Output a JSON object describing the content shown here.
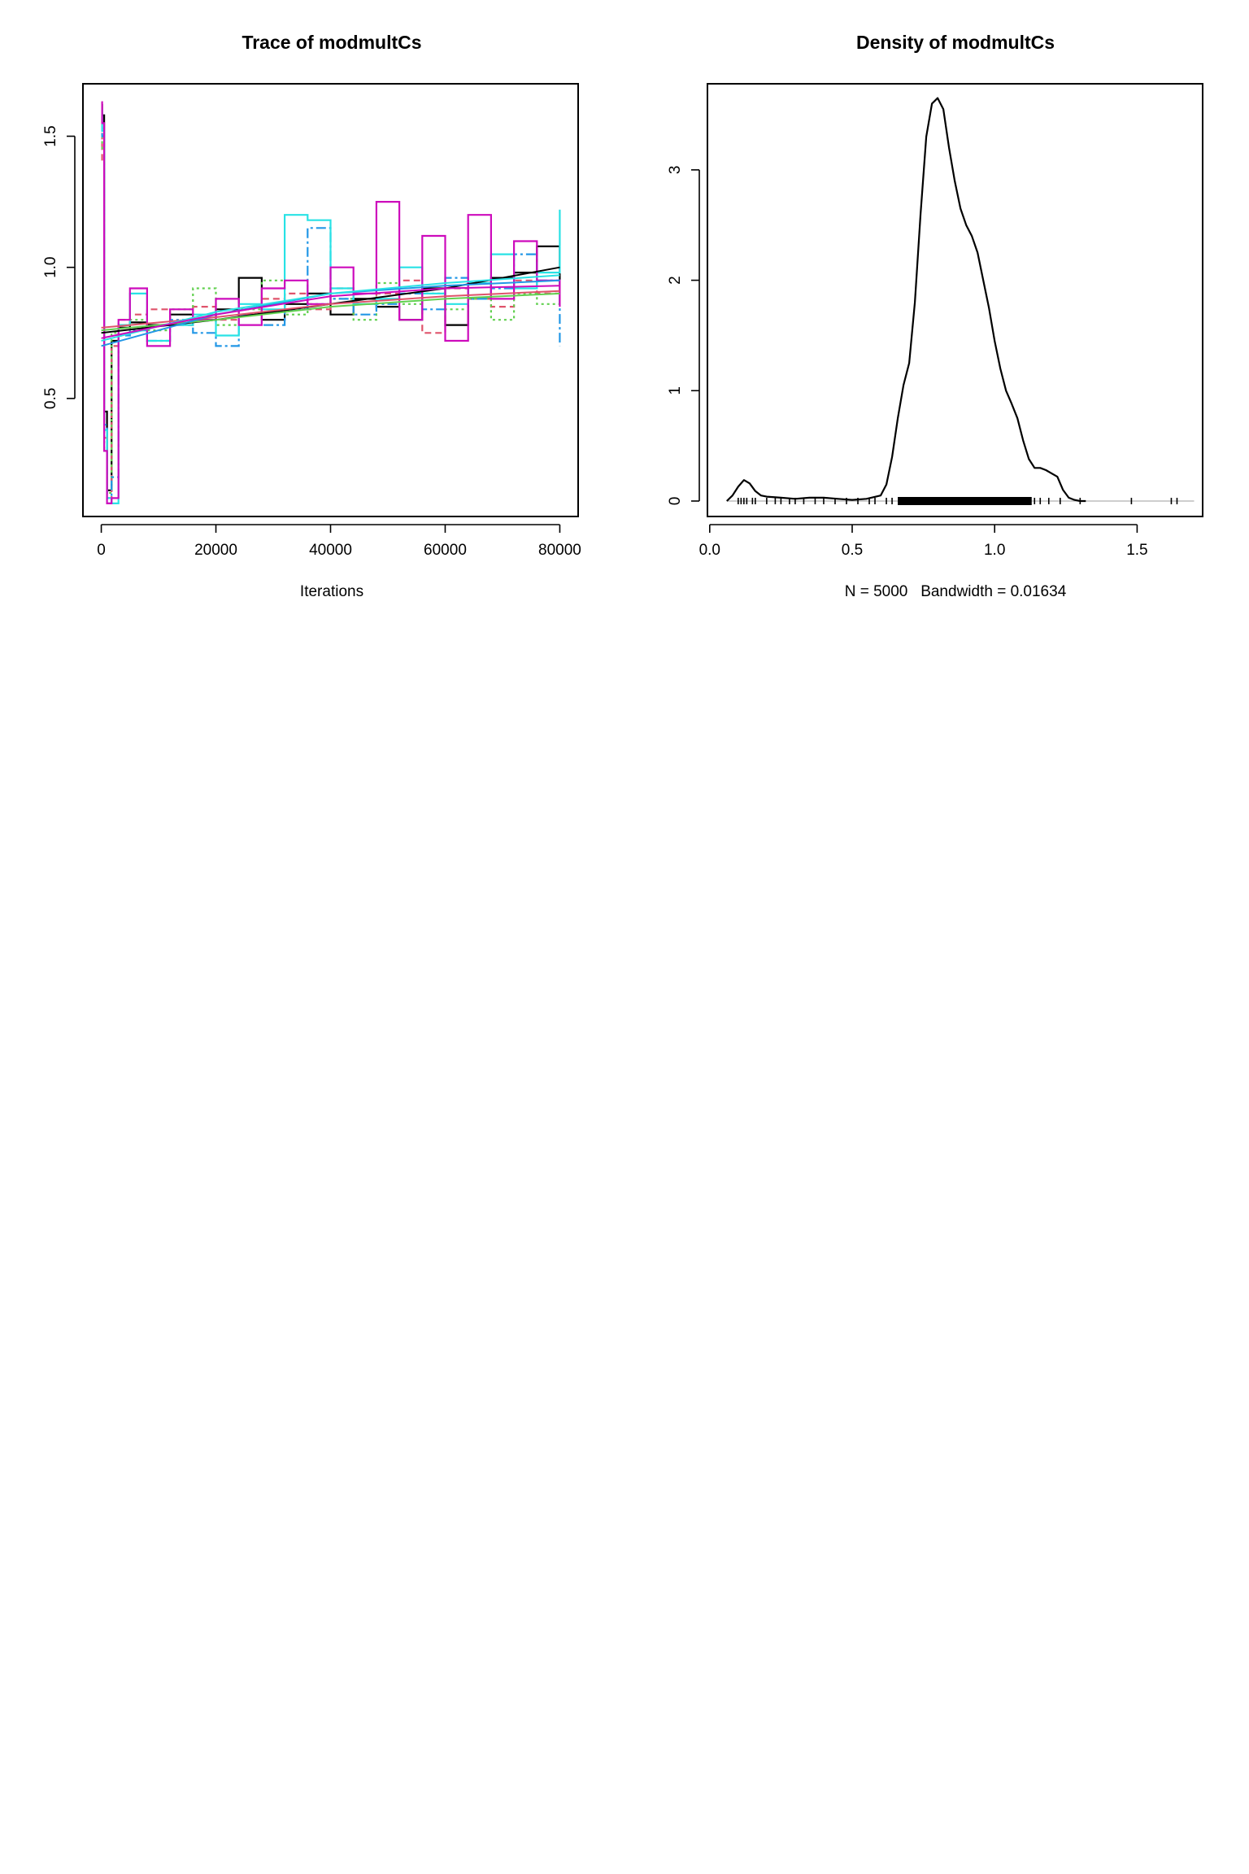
{
  "chart_data": [
    {
      "type": "line",
      "title": "Trace of modmultCs",
      "xlabel": "Iterations",
      "ylabel": "",
      "xlim": [
        -3200,
        83200
      ],
      "ylim": [
        0.05,
        1.7
      ],
      "x_ticks": [
        "0",
        "20000",
        "40000",
        "60000",
        "80000"
      ],
      "y_ticks": [
        "0.5",
        "1.0",
        "1.5"
      ],
      "x_tick_values": [
        0,
        20000,
        40000,
        60000,
        80000
      ],
      "y_tick_values": [
        0.5,
        1.0,
        1.5
      ],
      "grid": false,
      "legend": "none",
      "chains": [
        {
          "color": "#000000",
          "dash": "solid",
          "x": [
            0,
            150,
            500,
            1000,
            1800,
            3000,
            5000,
            8000,
            12000,
            16000,
            20000,
            24000,
            28000,
            32000,
            36000,
            40000,
            44000,
            48000,
            52000,
            56000,
            60000,
            64000,
            68000,
            72000,
            76000,
            80000
          ],
          "y": [
            1.62,
            1.58,
            0.45,
            0.15,
            0.72,
            0.77,
            0.79,
            0.78,
            0.82,
            0.8,
            0.84,
            0.96,
            0.8,
            0.86,
            0.9,
            0.82,
            0.88,
            0.85,
            0.8,
            0.92,
            0.78,
            0.88,
            0.96,
            0.98,
            1.08,
            0.86
          ]
        },
        {
          "color": "#DF536B",
          "dash": "8,5",
          "x": [
            0,
            150,
            500,
            1000,
            1800,
            3000,
            5000,
            8000,
            12000,
            16000,
            20000,
            24000,
            28000,
            32000,
            36000,
            40000,
            44000,
            48000,
            52000,
            56000,
            60000,
            64000,
            68000,
            72000,
            76000,
            80000
          ],
          "y": [
            1.55,
            1.4,
            0.35,
            0.12,
            0.7,
            0.8,
            0.82,
            0.84,
            0.78,
            0.85,
            0.8,
            0.82,
            0.88,
            0.9,
            0.84,
            0.92,
            0.86,
            0.9,
            0.95,
            0.75,
            0.92,
            0.88,
            0.85,
            0.95,
            0.9,
            0.92
          ]
        },
        {
          "color": "#61D04F",
          "dash": "3,4",
          "x": [
            0,
            150,
            500,
            1000,
            1800,
            3000,
            5000,
            8000,
            12000,
            16000,
            20000,
            24000,
            28000,
            32000,
            36000,
            40000,
            44000,
            48000,
            52000,
            56000,
            60000,
            64000,
            68000,
            72000,
            76000,
            80000
          ],
          "y": [
            1.5,
            1.45,
            0.3,
            0.14,
            0.75,
            0.78,
            0.8,
            0.76,
            0.84,
            0.92,
            0.78,
            0.84,
            0.95,
            0.82,
            0.86,
            0.88,
            0.8,
            0.94,
            0.86,
            0.9,
            0.84,
            0.88,
            0.8,
            0.9,
            0.86,
            0.88
          ]
        },
        {
          "color": "#2297E6",
          "dash": "12,4,3,4",
          "x": [
            0,
            150,
            500,
            1000,
            1800,
            3000,
            5000,
            8000,
            12000,
            16000,
            20000,
            24000,
            28000,
            32000,
            36000,
            40000,
            44000,
            48000,
            52000,
            56000,
            60000,
            64000,
            68000,
            72000,
            76000,
            80000
          ],
          "y": [
            1.58,
            1.5,
            0.4,
            0.1,
            0.2,
            0.74,
            0.76,
            0.72,
            0.8,
            0.75,
            0.7,
            0.82,
            0.78,
            0.84,
            1.15,
            0.88,
            0.82,
            0.86,
            0.9,
            0.84,
            0.96,
            0.88,
            0.92,
            1.05,
            0.95,
            0.7
          ]
        },
        {
          "color": "#28E2E5",
          "dash": "solid",
          "x": [
            0,
            150,
            500,
            1000,
            1800,
            3000,
            5000,
            8000,
            12000,
            16000,
            20000,
            24000,
            28000,
            32000,
            36000,
            40000,
            44000,
            48000,
            52000,
            56000,
            60000,
            64000,
            68000,
            72000,
            76000,
            80000
          ],
          "y": [
            1.6,
            1.52,
            0.38,
            0.12,
            0.1,
            0.78,
            0.9,
            0.72,
            0.78,
            0.82,
            0.74,
            0.86,
            0.84,
            1.2,
            1.18,
            0.92,
            0.86,
            0.88,
            1.0,
            0.9,
            0.86,
            0.94,
            1.05,
            0.92,
            0.98,
            1.22
          ]
        },
        {
          "color": "#CD0BBC",
          "dash": "solid",
          "x": [
            0,
            150,
            500,
            1000,
            1800,
            3000,
            5000,
            8000,
            12000,
            16000,
            20000,
            24000,
            28000,
            32000,
            36000,
            40000,
            44000,
            48000,
            52000,
            56000,
            60000,
            64000,
            68000,
            72000,
            76000,
            80000
          ],
          "y": [
            1.63,
            1.55,
            0.3,
            0.1,
            0.12,
            0.8,
            0.92,
            0.7,
            0.84,
            0.8,
            0.88,
            0.78,
            0.92,
            0.95,
            0.86,
            1.0,
            0.9,
            1.25,
            0.8,
            1.12,
            0.72,
            1.2,
            0.88,
            1.1,
            0.95,
            0.85
          ]
        }
      ],
      "smooth_lines": [
        {
          "color": "#000000",
          "x": [
            0,
            20000,
            40000,
            60000,
            80000
          ],
          "y": [
            0.75,
            0.8,
            0.86,
            0.92,
            1.0
          ]
        },
        {
          "color": "#DF536B",
          "x": [
            0,
            20000,
            40000,
            60000,
            80000
          ],
          "y": [
            0.77,
            0.81,
            0.86,
            0.89,
            0.91
          ]
        },
        {
          "color": "#61D04F",
          "x": [
            0,
            20000,
            40000,
            60000,
            80000
          ],
          "y": [
            0.76,
            0.8,
            0.85,
            0.88,
            0.9
          ]
        },
        {
          "color": "#2297E6",
          "x": [
            0,
            20000,
            40000,
            60000,
            80000
          ],
          "y": [
            0.7,
            0.82,
            0.9,
            0.93,
            0.95
          ]
        },
        {
          "color": "#28E2E5",
          "x": [
            0,
            20000,
            40000,
            60000,
            80000
          ],
          "y": [
            0.72,
            0.83,
            0.9,
            0.94,
            0.97
          ]
        },
        {
          "color": "#CD0BBC",
          "x": [
            0,
            20000,
            40000,
            60000,
            80000
          ],
          "y": [
            0.73,
            0.82,
            0.89,
            0.92,
            0.93
          ]
        }
      ]
    },
    {
      "type": "line",
      "title": "Density of modmultCs",
      "xlabel": "N = 5000   Bandwidth = 0.01634",
      "ylabel": "",
      "xlim": [
        -0.008,
        1.73
      ],
      "ylim": [
        -0.14,
        3.78
      ],
      "x_ticks": [
        "0.0",
        "0.5",
        "1.0",
        "1.5"
      ],
      "y_ticks": [
        "0",
        "1",
        "2",
        "3"
      ],
      "x_tick_values": [
        0.0,
        0.5,
        1.0,
        1.5
      ],
      "y_tick_values": [
        0,
        1,
        2,
        3
      ],
      "grid": false,
      "legend": "none",
      "density": {
        "x": [
          0.06,
          0.08,
          0.1,
          0.12,
          0.14,
          0.16,
          0.18,
          0.2,
          0.25,
          0.3,
          0.35,
          0.4,
          0.45,
          0.5,
          0.55,
          0.6,
          0.62,
          0.64,
          0.66,
          0.68,
          0.7,
          0.72,
          0.74,
          0.76,
          0.78,
          0.8,
          0.82,
          0.84,
          0.86,
          0.88,
          0.9,
          0.92,
          0.94,
          0.96,
          0.98,
          1.0,
          1.02,
          1.04,
          1.06,
          1.08,
          1.1,
          1.12,
          1.14,
          1.16,
          1.18,
          1.2,
          1.22,
          1.24,
          1.26,
          1.28,
          1.3,
          1.32
        ],
        "y": [
          0.0,
          0.05,
          0.13,
          0.19,
          0.16,
          0.09,
          0.05,
          0.04,
          0.03,
          0.02,
          0.03,
          0.03,
          0.02,
          0.01,
          0.02,
          0.05,
          0.15,
          0.4,
          0.75,
          1.05,
          1.25,
          1.8,
          2.6,
          3.3,
          3.6,
          3.65,
          3.55,
          3.2,
          2.9,
          2.65,
          2.5,
          2.4,
          2.25,
          2.0,
          1.75,
          1.45,
          1.2,
          1.0,
          0.88,
          0.75,
          0.55,
          0.38,
          0.3,
          0.3,
          0.28,
          0.25,
          0.22,
          0.1,
          0.03,
          0.01,
          0.0,
          0.0
        ]
      },
      "rug": {
        "sparse": [
          0.1,
          0.11,
          0.12,
          0.13,
          0.15,
          0.16,
          0.2,
          0.23,
          0.25,
          0.28,
          0.3,
          0.33,
          0.37,
          0.4,
          0.44,
          0.48,
          0.52,
          0.56,
          0.58,
          0.62,
          0.64,
          1.14,
          1.16,
          1.19,
          1.23,
          1.3,
          1.48,
          1.62,
          1.64
        ],
        "dense_range": [
          0.66,
          1.13
        ]
      }
    }
  ]
}
